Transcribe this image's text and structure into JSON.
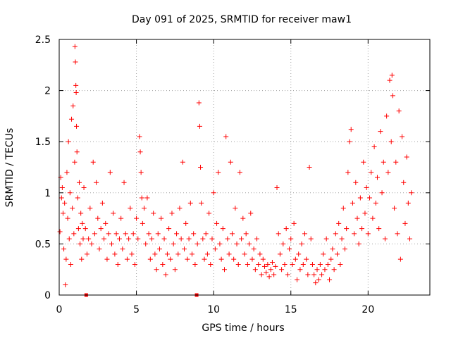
{
  "chart_data": {
    "type": "scatter",
    "title": "Day 091 of 2025, SRMTID for receiver maw1",
    "xlabel": "GPS time / hours",
    "ylabel": "SRMTID / TECUs",
    "xlim": [
      0,
      24
    ],
    "ylim": [
      0,
      2.5
    ],
    "xticks": [
      "0",
      "5",
      "10",
      "15",
      "20"
    ],
    "yticks": [
      "0",
      "0.5",
      "1",
      "1.5",
      "2",
      "2.5"
    ],
    "grid": true,
    "marker": "plus",
    "color": "#ff0000",
    "gap_markers_x": [
      1.75,
      8.9
    ],
    "series": [
      {
        "name": "SRMTID",
        "points": [
          [
            0.05,
            0.62
          ],
          [
            0.1,
            1.15
          ],
          [
            0.15,
            0.95
          ],
          [
            0.2,
            1.05
          ],
          [
            0.25,
            0.8
          ],
          [
            0.3,
            0.45
          ],
          [
            0.35,
            0.9
          ],
          [
            0.4,
            0.1
          ],
          [
            0.45,
            0.35
          ],
          [
            0.5,
            1.2
          ],
          [
            0.55,
            0.75
          ],
          [
            0.6,
            1.5
          ],
          [
            0.65,
            0.55
          ],
          [
            0.7,
            1.0
          ],
          [
            0.75,
            0.3
          ],
          [
            0.8,
            1.72
          ],
          [
            0.85,
            0.85
          ],
          [
            0.9,
            1.85
          ],
          [
            0.95,
            0.6
          ],
          [
            1.0,
            1.3
          ],
          [
            1.02,
            2.43
          ],
          [
            1.05,
            2.28
          ],
          [
            1.08,
            2.05
          ],
          [
            1.1,
            1.98
          ],
          [
            1.12,
            1.65
          ],
          [
            1.15,
            1.4
          ],
          [
            1.2,
            0.95
          ],
          [
            1.25,
            0.65
          ],
          [
            1.3,
            1.1
          ],
          [
            1.35,
            0.5
          ],
          [
            1.4,
            0.8
          ],
          [
            1.45,
            0.35
          ],
          [
            1.5,
            0.7
          ],
          [
            1.55,
            0.55
          ],
          [
            1.6,
            1.05
          ],
          [
            1.7,
            0.65
          ],
          [
            1.8,
            0.4
          ],
          [
            1.9,
            0.55
          ],
          [
            2.0,
            0.85
          ],
          [
            2.1,
            0.5
          ],
          [
            2.2,
            1.3
          ],
          [
            2.3,
            0.6
          ],
          [
            2.4,
            1.1
          ],
          [
            2.5,
            0.75
          ],
          [
            2.6,
            0.45
          ],
          [
            2.7,
            0.65
          ],
          [
            2.8,
            0.9
          ],
          [
            2.9,
            0.55
          ],
          [
            3.0,
            0.7
          ],
          [
            3.1,
            0.35
          ],
          [
            3.2,
            0.6
          ],
          [
            3.3,
            1.2
          ],
          [
            3.4,
            0.5
          ],
          [
            3.5,
            0.8
          ],
          [
            3.6,
            0.4
          ],
          [
            3.7,
            0.6
          ],
          [
            3.8,
            0.3
          ],
          [
            3.9,
            0.55
          ],
          [
            4.0,
            0.75
          ],
          [
            4.1,
            0.45
          ],
          [
            4.2,
            1.1
          ],
          [
            4.3,
            0.6
          ],
          [
            4.4,
            0.35
          ],
          [
            4.5,
            0.55
          ],
          [
            4.6,
            0.85
          ],
          [
            4.7,
            0.4
          ],
          [
            4.8,
            0.6
          ],
          [
            4.9,
            0.3
          ],
          [
            5.0,
            0.75
          ],
          [
            5.1,
            0.55
          ],
          [
            5.2,
            1.55
          ],
          [
            5.25,
            1.4
          ],
          [
            5.3,
            1.2
          ],
          [
            5.35,
            0.95
          ],
          [
            5.4,
            0.7
          ],
          [
            5.5,
            0.85
          ],
          [
            5.6,
            0.5
          ],
          [
            5.7,
            0.95
          ],
          [
            5.8,
            0.6
          ],
          [
            5.9,
            0.35
          ],
          [
            6.0,
            0.55
          ],
          [
            6.1,
            0.8
          ],
          [
            6.2,
            0.4
          ],
          [
            6.3,
            0.25
          ],
          [
            6.4,
            0.6
          ],
          [
            6.5,
            0.45
          ],
          [
            6.6,
            0.75
          ],
          [
            6.7,
            0.3
          ],
          [
            6.8,
            0.55
          ],
          [
            6.9,
            0.2
          ],
          [
            7.0,
            0.4
          ],
          [
            7.1,
            0.65
          ],
          [
            7.2,
            0.35
          ],
          [
            7.3,
            0.8
          ],
          [
            7.4,
            0.5
          ],
          [
            7.5,
            0.25
          ],
          [
            7.6,
            0.6
          ],
          [
            7.7,
            0.4
          ],
          [
            7.8,
            0.85
          ],
          [
            7.9,
            0.55
          ],
          [
            8.0,
            1.3
          ],
          [
            8.1,
            0.45
          ],
          [
            8.2,
            0.7
          ],
          [
            8.3,
            0.35
          ],
          [
            8.4,
            0.55
          ],
          [
            8.5,
            0.9
          ],
          [
            8.6,
            0.4
          ],
          [
            8.7,
            0.6
          ],
          [
            8.8,
            0.3
          ],
          [
            8.95,
            0.5
          ],
          [
            9.05,
            1.88
          ],
          [
            9.1,
            1.65
          ],
          [
            9.15,
            1.25
          ],
          [
            9.2,
            0.9
          ],
          [
            9.3,
            0.55
          ],
          [
            9.4,
            0.35
          ],
          [
            9.5,
            0.6
          ],
          [
            9.6,
            0.4
          ],
          [
            9.7,
            0.8
          ],
          [
            9.8,
            0.3
          ],
          [
            9.9,
            0.55
          ],
          [
            10.0,
            1.0
          ],
          [
            10.1,
            0.45
          ],
          [
            10.2,
            0.7
          ],
          [
            10.3,
            1.2
          ],
          [
            10.4,
            0.5
          ],
          [
            10.5,
            0.35
          ],
          [
            10.6,
            0.65
          ],
          [
            10.7,
            0.25
          ],
          [
            10.8,
            1.55
          ],
          [
            10.9,
            0.55
          ],
          [
            11.0,
            0.4
          ],
          [
            11.1,
            1.3
          ],
          [
            11.2,
            0.6
          ],
          [
            11.3,
            0.35
          ],
          [
            11.4,
            0.85
          ],
          [
            11.5,
            0.5
          ],
          [
            11.6,
            0.3
          ],
          [
            11.7,
            1.2
          ],
          [
            11.8,
            0.55
          ],
          [
            11.9,
            0.75
          ],
          [
            12.0,
            0.4
          ],
          [
            12.1,
            0.6
          ],
          [
            12.2,
            0.3
          ],
          [
            12.3,
            0.5
          ],
          [
            12.4,
            0.8
          ],
          [
            12.5,
            0.35
          ],
          [
            12.6,
            0.45
          ],
          [
            12.7,
            0.25
          ],
          [
            12.8,
            0.55
          ],
          [
            12.9,
            0.3
          ],
          [
            13.0,
            0.4
          ],
          [
            13.1,
            0.2
          ],
          [
            13.2,
            0.35
          ],
          [
            13.3,
            0.28
          ],
          [
            13.4,
            0.22
          ],
          [
            13.5,
            0.3
          ],
          [
            13.6,
            0.18
          ],
          [
            13.7,
            0.25
          ],
          [
            13.8,
            0.32
          ],
          [
            13.9,
            0.2
          ],
          [
            14.0,
            0.28
          ],
          [
            14.1,
            1.05
          ],
          [
            14.2,
            0.6
          ],
          [
            14.3,
            0.4
          ],
          [
            14.4,
            0.25
          ],
          [
            14.5,
            0.5
          ],
          [
            14.6,
            0.3
          ],
          [
            14.7,
            0.65
          ],
          [
            14.8,
            0.2
          ],
          [
            14.9,
            0.45
          ],
          [
            15.0,
            0.55
          ],
          [
            15.1,
            0.3
          ],
          [
            15.2,
            0.7
          ],
          [
            15.3,
            0.35
          ],
          [
            15.4,
            0.15
          ],
          [
            15.5,
            0.4
          ],
          [
            15.6,
            0.25
          ],
          [
            15.7,
            0.5
          ],
          [
            15.8,
            0.3
          ],
          [
            15.9,
            0.6
          ],
          [
            16.0,
            0.35
          ],
          [
            16.1,
            0.2
          ],
          [
            16.2,
            1.25
          ],
          [
            16.3,
            0.55
          ],
          [
            16.4,
            0.3
          ],
          [
            16.5,
            0.2
          ],
          [
            16.6,
            0.12
          ],
          [
            16.7,
            0.25
          ],
          [
            16.8,
            0.15
          ],
          [
            16.9,
            0.3
          ],
          [
            17.0,
            0.2
          ],
          [
            17.1,
            0.4
          ],
          [
            17.2,
            0.25
          ],
          [
            17.3,
            0.55
          ],
          [
            17.4,
            0.3
          ],
          [
            17.5,
            0.15
          ],
          [
            17.6,
            0.35
          ],
          [
            17.7,
            0.45
          ],
          [
            17.8,
            0.25
          ],
          [
            17.9,
            0.6
          ],
          [
            18.0,
            0.4
          ],
          [
            18.1,
            0.7
          ],
          [
            18.2,
            0.3
          ],
          [
            18.3,
            0.55
          ],
          [
            18.4,
            0.85
          ],
          [
            18.5,
            0.45
          ],
          [
            18.6,
            0.65
          ],
          [
            18.7,
            1.2
          ],
          [
            18.8,
            1.5
          ],
          [
            18.9,
            1.62
          ],
          [
            19.0,
            0.9
          ],
          [
            19.1,
            0.6
          ],
          [
            19.2,
            1.1
          ],
          [
            19.3,
            0.75
          ],
          [
            19.4,
            0.5
          ],
          [
            19.5,
            0.95
          ],
          [
            19.6,
            0.65
          ],
          [
            19.7,
            1.3
          ],
          [
            19.8,
            0.8
          ],
          [
            19.9,
            1.05
          ],
          [
            20.0,
            0.6
          ],
          [
            20.1,
            0.95
          ],
          [
            20.2,
            1.2
          ],
          [
            20.3,
            0.75
          ],
          [
            20.4,
            1.45
          ],
          [
            20.5,
            0.9
          ],
          [
            20.6,
            1.15
          ],
          [
            20.7,
            0.65
          ],
          [
            20.8,
            1.6
          ],
          [
            20.9,
            1.0
          ],
          [
            21.0,
            1.3
          ],
          [
            21.1,
            0.55
          ],
          [
            21.2,
            1.75
          ],
          [
            21.3,
            1.2
          ],
          [
            21.4,
            2.1
          ],
          [
            21.5,
            1.5
          ],
          [
            21.55,
            2.15
          ],
          [
            21.6,
            1.95
          ],
          [
            21.7,
            0.85
          ],
          [
            21.8,
            1.3
          ],
          [
            21.9,
            0.6
          ],
          [
            22.0,
            1.8
          ],
          [
            22.1,
            0.35
          ],
          [
            22.2,
            1.55
          ],
          [
            22.3,
            1.1
          ],
          [
            22.4,
            0.7
          ],
          [
            22.5,
            1.35
          ],
          [
            22.6,
            0.9
          ],
          [
            22.7,
            0.55
          ],
          [
            22.8,
            1.0
          ]
        ]
      }
    ]
  }
}
